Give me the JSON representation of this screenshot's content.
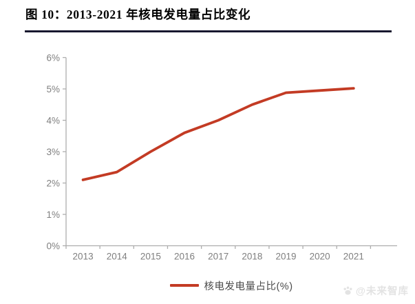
{
  "figure": {
    "title": "图 10：2013-2021 年核电发电量占比变化",
    "watermark": "@未来智库"
  },
  "chart_data": {
    "type": "line",
    "title": "图 10：2013-2021 年核电发电量占比变化",
    "categories": [
      "2013",
      "2014",
      "2015",
      "2016",
      "2017",
      "2018",
      "2019",
      "2020",
      "2021"
    ],
    "series": [
      {
        "name": "核电发电量占比(%)",
        "values": [
          2.1,
          2.35,
          3.0,
          3.6,
          4.0,
          4.5,
          4.88,
          4.95,
          5.02
        ]
      }
    ],
    "xlabel": "",
    "ylabel": "",
    "ylim": [
      0,
      6
    ],
    "yticks": [
      0,
      1,
      2,
      3,
      4,
      5,
      6
    ],
    "ytick_labels": [
      "0%",
      "1%",
      "2%",
      "3%",
      "4%",
      "5%",
      "6%"
    ],
    "grid": false,
    "legend_position": "bottom",
    "line_color": "#c33b24",
    "axis_color": "#adadad",
    "tick_label_color": "#7f7f7f"
  }
}
